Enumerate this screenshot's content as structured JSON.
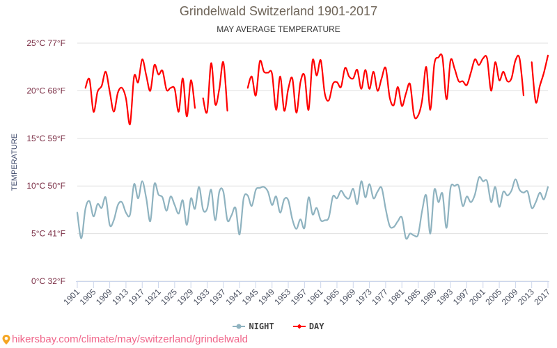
{
  "header": {
    "title": "Grindelwald Switzerland 1901-2017",
    "subtitle": "MAY AVERAGE TEMPERATURE"
  },
  "legend": {
    "night_label": "NIGHT",
    "day_label": "DAY"
  },
  "source": {
    "icon": "map-pin-icon",
    "text": "hikersbay.com/climate/may/switzerland/grindelwald"
  },
  "colors": {
    "night": "#8fb3c0",
    "day": "#ff0000",
    "grid": "#e0e0e0",
    "axis": "#ccd6eb",
    "source": "#f0668a",
    "pin": "#f5a623"
  },
  "chart_data": {
    "type": "line",
    "title": "Grindelwald Switzerland 1901-2017",
    "subtitle": "MAY AVERAGE TEMPERATURE",
    "xlabel": "",
    "ylabel": "TEMPERATURE",
    "x_start": 1901,
    "x_end": 2017,
    "xticks": [
      "1901",
      "1905",
      "1909",
      "1913",
      "1917",
      "1921",
      "1925",
      "1929",
      "1933",
      "1937",
      "1941",
      "1945",
      "1949",
      "1953",
      "1957",
      "1961",
      "1965",
      "1969",
      "1973",
      "1977",
      "1981",
      "1985",
      "1989",
      "1993",
      "1997",
      "2001",
      "2005",
      "2009",
      "2013",
      "2017"
    ],
    "ylim": [
      0,
      25
    ],
    "yticks": [
      {
        "value": 0,
        "label": "0°C 32°F"
      },
      {
        "value": 5,
        "label": "5°C 41°F"
      },
      {
        "value": 10,
        "label": "10°C 50°F"
      },
      {
        "value": 15,
        "label": "15°C 59°F"
      },
      {
        "value": 20,
        "label": "20°C 68°F"
      },
      {
        "value": 25,
        "label": "25°C 77°F"
      }
    ],
    "grid": true,
    "legend_position": "bottom",
    "series": [
      {
        "name": "NIGHT",
        "values": [
          7.2,
          4.5,
          7.6,
          8.4,
          6.8,
          8.1,
          7.7,
          8.8,
          5.9,
          6.4,
          8.0,
          8.3,
          7.2,
          7.0,
          10.2,
          8.7,
          10.5,
          8.7,
          6.3,
          10.2,
          9.1,
          8.8,
          7.4,
          8.9,
          8.0,
          7.1,
          8.5,
          5.9,
          8.7,
          7.6,
          9.9,
          7.5,
          7.6,
          9.6,
          6.4,
          9.4,
          9.4,
          6.4,
          6.9,
          7.7,
          4.9,
          8.7,
          9.0,
          7.9,
          9.6,
          9.8,
          9.9,
          9.4,
          8.0,
          8.9,
          7.2,
          8.6,
          8.5,
          6.5,
          5.5,
          6.5,
          5.6,
          8.8,
          7.0,
          7.7,
          6.4,
          6.4,
          6.7,
          8.9,
          8.7,
          9.5,
          8.9,
          8.7,
          9.7,
          8.1,
          10.5,
          8.8,
          10.2,
          8.7,
          9.4,
          9.8,
          7.6,
          5.8,
          5.7,
          6.3,
          6.7,
          4.5,
          5.0,
          4.8,
          4.9,
          7.4,
          9.0,
          5.0,
          9.6,
          8.3,
          9.2,
          5.6,
          9.8,
          10.0,
          10.0,
          7.9,
          8.9,
          8.3,
          9.1,
          10.9,
          10.5,
          10.5,
          8.3,
          9.9,
          7.8,
          9.4,
          9.0,
          9.5,
          10.7,
          9.6,
          9.3,
          9.4,
          7.7,
          8.3,
          9.3,
          8.6,
          9.9
        ]
      },
      {
        "name": "DAY",
        "values": [
          null,
          null,
          20.3,
          21.2,
          17.8,
          19.9,
          20.5,
          22.0,
          19.9,
          17.8,
          19.8,
          20.3,
          19.2,
          16.5,
          21.5,
          20.9,
          23.3,
          21.6,
          20.0,
          22.7,
          21.7,
          22.1,
          20.1,
          20.3,
          20.2,
          17.8,
          21.3,
          17.3,
          21.1,
          18.2,
          null,
          19.2,
          17.8,
          22.9,
          18.6,
          20.2,
          23.0,
          17.9,
          null,
          null,
          null,
          null,
          20.3,
          21.5,
          19.5,
          23.1,
          22.0,
          21.9,
          21.8,
          18.0,
          21.5,
          17.9,
          20.2,
          21.3,
          17.7,
          20.9,
          21.6,
          18.0,
          23.2,
          21.6,
          23.2,
          19.7,
          19.0,
          20.7,
          20.9,
          20.4,
          22.4,
          21.5,
          21.3,
          22.2,
          20.2,
          22.2,
          20.2,
          22.0,
          20.0,
          21.3,
          22.4,
          19.3,
          18.5,
          20.4,
          18.4,
          19.7,
          20.7,
          17.4,
          17.4,
          19.0,
          22.5,
          18.0,
          22.8,
          23.5,
          23.5,
          19.1,
          23.2,
          22.3,
          21.0,
          21.0,
          20.6,
          21.9,
          23.3,
          22.7,
          23.4,
          23.4,
          20.0,
          23.0,
          21.1,
          22.0,
          21.0,
          21.3,
          23.2,
          23.4,
          19.5,
          null,
          23.0,
          18.8,
          20.5,
          21.9,
          23.7
        ]
      }
    ]
  }
}
